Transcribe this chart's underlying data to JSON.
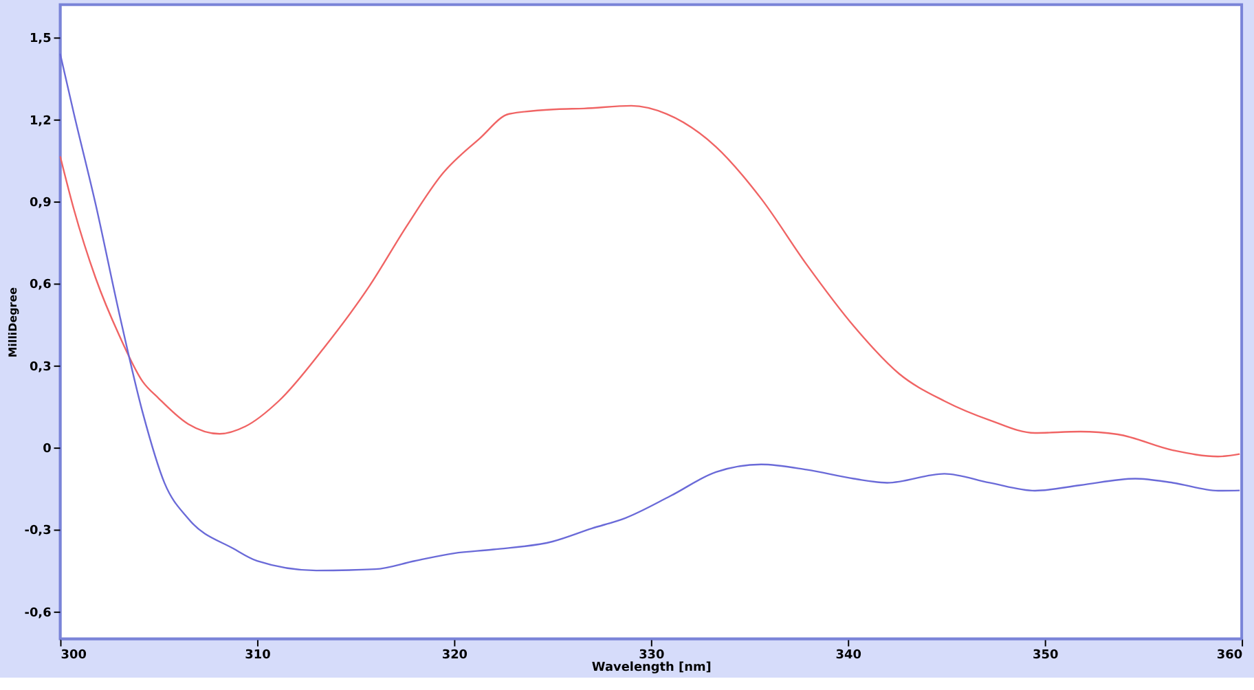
{
  "chart_data": {
    "type": "line",
    "xlabel": "Wavelength [nm]",
    "ylabel": "MilliDegree",
    "xlim": [
      300,
      360
    ],
    "ylim": [
      -0.7,
      1.62
    ],
    "xticks": [
      300,
      310,
      320,
      330,
      340,
      350,
      360
    ],
    "yticks": [
      {
        "value": 1.5,
        "label": "1,5"
      },
      {
        "value": 1.2,
        "label": "1,2"
      },
      {
        "value": 0.9,
        "label": "0,9"
      },
      {
        "value": 0.6,
        "label": "0,6"
      },
      {
        "value": 0.3,
        "label": "0,3"
      },
      {
        "value": 0,
        "label": "0"
      },
      {
        "value": -0.3,
        "label": "-0,3"
      },
      {
        "value": -0.6,
        "label": "-0,6"
      }
    ],
    "grid": false,
    "legend": false,
    "marker": "none",
    "line_style": "solid",
    "series": [
      {
        "color": "#f06464",
        "x": [
          300,
          300.7,
          301.8,
          303,
          304.2,
          305,
          306.5,
          308.1,
          309.4,
          311.1,
          313.4,
          315.7,
          317.6,
          319.4,
          321.3,
          322.8,
          325.2,
          326.6,
          329,
          330.8,
          333.3,
          335.6,
          337.9,
          340.3,
          342.6,
          344.9,
          347.2,
          349.5,
          351.8,
          353.7,
          356.5,
          358.8,
          359.9
        ],
        "values": [
          1.065,
          0.87,
          0.62,
          0.41,
          0.24,
          0.18,
          0.086,
          0.05,
          0.077,
          0.17,
          0.365,
          0.59,
          0.81,
          1.0,
          1.13,
          1.22,
          1.237,
          1.24,
          1.25,
          1.22,
          1.1,
          0.91,
          0.67,
          0.444,
          0.27,
          0.17,
          0.1,
          0.053,
          0.058,
          0.048,
          -0.01,
          -0.033,
          -0.024
        ]
      },
      {
        "color": "#6a6ad8",
        "x": [
          300,
          300.7,
          301.8,
          303,
          304.2,
          305.3,
          306.5,
          308.8,
          310,
          313,
          316,
          318,
          320,
          322,
          325,
          327,
          328.7,
          331,
          333.3,
          335.6,
          337.9,
          340.3,
          342,
          344.9,
          347.2,
          349.5,
          351.8,
          354.6,
          356.5,
          358.8,
          359.9
        ],
        "values": [
          1.44,
          1.22,
          0.89,
          0.49,
          0.125,
          -0.13,
          -0.26,
          -0.37,
          -0.415,
          -0.45,
          -0.445,
          -0.415,
          -0.387,
          -0.373,
          -0.344,
          -0.296,
          -0.258,
          -0.177,
          -0.09,
          -0.062,
          -0.081,
          -0.114,
          -0.129,
          -0.096,
          -0.129,
          -0.158,
          -0.138,
          -0.114,
          -0.129,
          -0.158,
          -0.157
        ]
      }
    ]
  }
}
